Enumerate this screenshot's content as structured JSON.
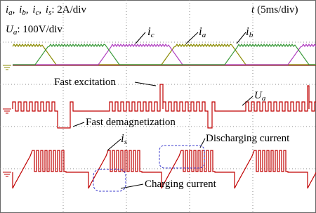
{
  "header": {
    "current_signals": [
      {
        "base": "i",
        "sub": "a"
      },
      {
        "base": "i",
        "sub": "b"
      },
      {
        "base": "i",
        "sub": "c"
      },
      {
        "base": "i",
        "sub": "s"
      }
    ],
    "separator": ",",
    "current_scale": ": 2A/div",
    "voltage_signal": {
      "base": "U",
      "sub": "a"
    },
    "voltage_scale": ": 100V/div",
    "time_symbol": "t",
    "time_scale": "(5ms/div)"
  },
  "traces": {
    "ic": {
      "base": "i",
      "sub": "c"
    },
    "ia": {
      "base": "i",
      "sub": "a"
    },
    "ib": {
      "base": "i",
      "sub": "b"
    },
    "ua": {
      "base": "U",
      "sub": "a"
    },
    "is": {
      "base": "i",
      "sub": "s"
    }
  },
  "annotations": {
    "fast_excitation": "Fast excitation",
    "fast_demagnetization": "Fast demagnetization",
    "discharging_current": "Discharging current",
    "charging_current": "Charging current"
  }
}
